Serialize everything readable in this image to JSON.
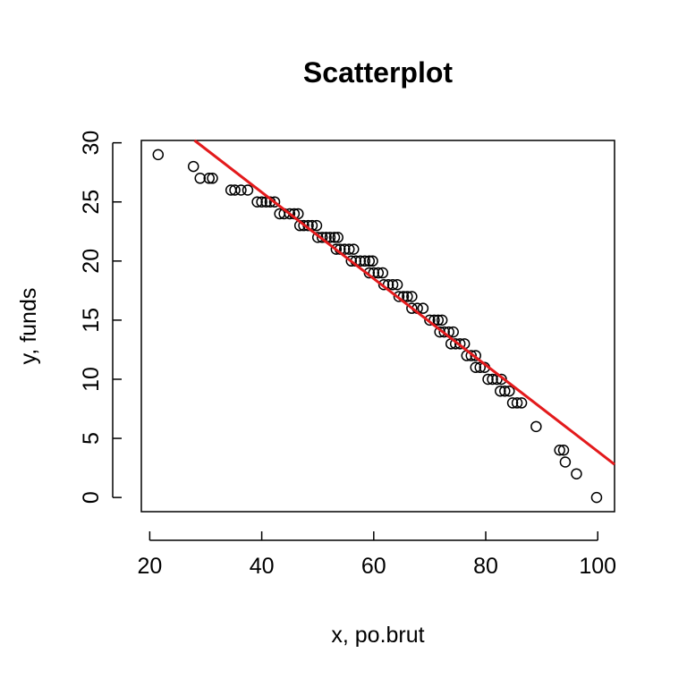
{
  "chart_data": {
    "type": "scatter",
    "title": "Scatterplot",
    "xlabel": "x, po.brut",
    "ylabel": "y, funds",
    "xlim": [
      18.5,
      103.0
    ],
    "ylim": [
      -1.2,
      30.2
    ],
    "xticks": [
      20,
      40,
      60,
      80,
      100
    ],
    "yticks": [
      0,
      5,
      10,
      15,
      20,
      25,
      30
    ],
    "grid": false,
    "fit_line": {
      "color": "#e31a1c",
      "x": [
        28,
        103
      ],
      "y": [
        30.2,
        2.8
      ]
    },
    "points": [
      [
        21.5,
        29
      ],
      [
        27.8,
        28
      ],
      [
        29.0,
        27
      ],
      [
        30.6,
        27
      ],
      [
        31.2,
        27
      ],
      [
        34.5,
        26
      ],
      [
        35.2,
        26
      ],
      [
        36.3,
        26
      ],
      [
        37.5,
        26
      ],
      [
        39.2,
        25
      ],
      [
        40.0,
        25
      ],
      [
        40.8,
        25
      ],
      [
        41.5,
        25
      ],
      [
        42.3,
        25
      ],
      [
        43.2,
        24
      ],
      [
        44.0,
        24
      ],
      [
        45.0,
        24
      ],
      [
        45.8,
        24
      ],
      [
        46.5,
        24
      ],
      [
        46.8,
        23
      ],
      [
        47.5,
        23
      ],
      [
        48.3,
        23
      ],
      [
        49.0,
        23
      ],
      [
        49.8,
        23
      ],
      [
        50.0,
        22
      ],
      [
        50.8,
        22
      ],
      [
        51.5,
        22
      ],
      [
        52.2,
        22
      ],
      [
        53.0,
        22
      ],
      [
        53.6,
        22
      ],
      [
        53.3,
        21
      ],
      [
        54.0,
        21
      ],
      [
        54.8,
        21
      ],
      [
        55.6,
        21
      ],
      [
        56.4,
        21
      ],
      [
        56.0,
        20
      ],
      [
        56.8,
        20
      ],
      [
        57.6,
        20
      ],
      [
        58.4,
        20
      ],
      [
        59.2,
        20
      ],
      [
        59.8,
        20
      ],
      [
        59.2,
        19
      ],
      [
        60.0,
        19
      ],
      [
        60.8,
        19
      ],
      [
        61.6,
        19
      ],
      [
        61.8,
        18
      ],
      [
        62.6,
        18
      ],
      [
        63.4,
        18
      ],
      [
        64.2,
        18
      ],
      [
        64.5,
        17
      ],
      [
        65.3,
        17
      ],
      [
        66.0,
        17
      ],
      [
        66.8,
        17
      ],
      [
        66.8,
        16
      ],
      [
        67.8,
        16
      ],
      [
        68.8,
        16
      ],
      [
        70.0,
        15
      ],
      [
        70.8,
        15
      ],
      [
        71.5,
        15
      ],
      [
        72.2,
        15
      ],
      [
        71.8,
        14
      ],
      [
        72.6,
        14
      ],
      [
        73.4,
        14
      ],
      [
        74.2,
        14
      ],
      [
        73.8,
        13
      ],
      [
        74.6,
        13
      ],
      [
        75.4,
        13
      ],
      [
        76.2,
        13
      ],
      [
        76.6,
        12
      ],
      [
        77.4,
        12
      ],
      [
        78.2,
        12
      ],
      [
        78.2,
        11
      ],
      [
        79.0,
        11
      ],
      [
        79.8,
        11
      ],
      [
        80.4,
        10
      ],
      [
        81.2,
        10
      ],
      [
        82.0,
        10
      ],
      [
        82.8,
        10
      ],
      [
        82.6,
        9
      ],
      [
        83.4,
        9
      ],
      [
        84.2,
        9
      ],
      [
        84.8,
        8
      ],
      [
        85.6,
        8
      ],
      [
        86.4,
        8
      ],
      [
        89.0,
        6
      ],
      [
        93.2,
        4
      ],
      [
        93.9,
        4
      ],
      [
        94.2,
        3
      ],
      [
        96.2,
        2
      ],
      [
        99.8,
        0
      ]
    ]
  }
}
